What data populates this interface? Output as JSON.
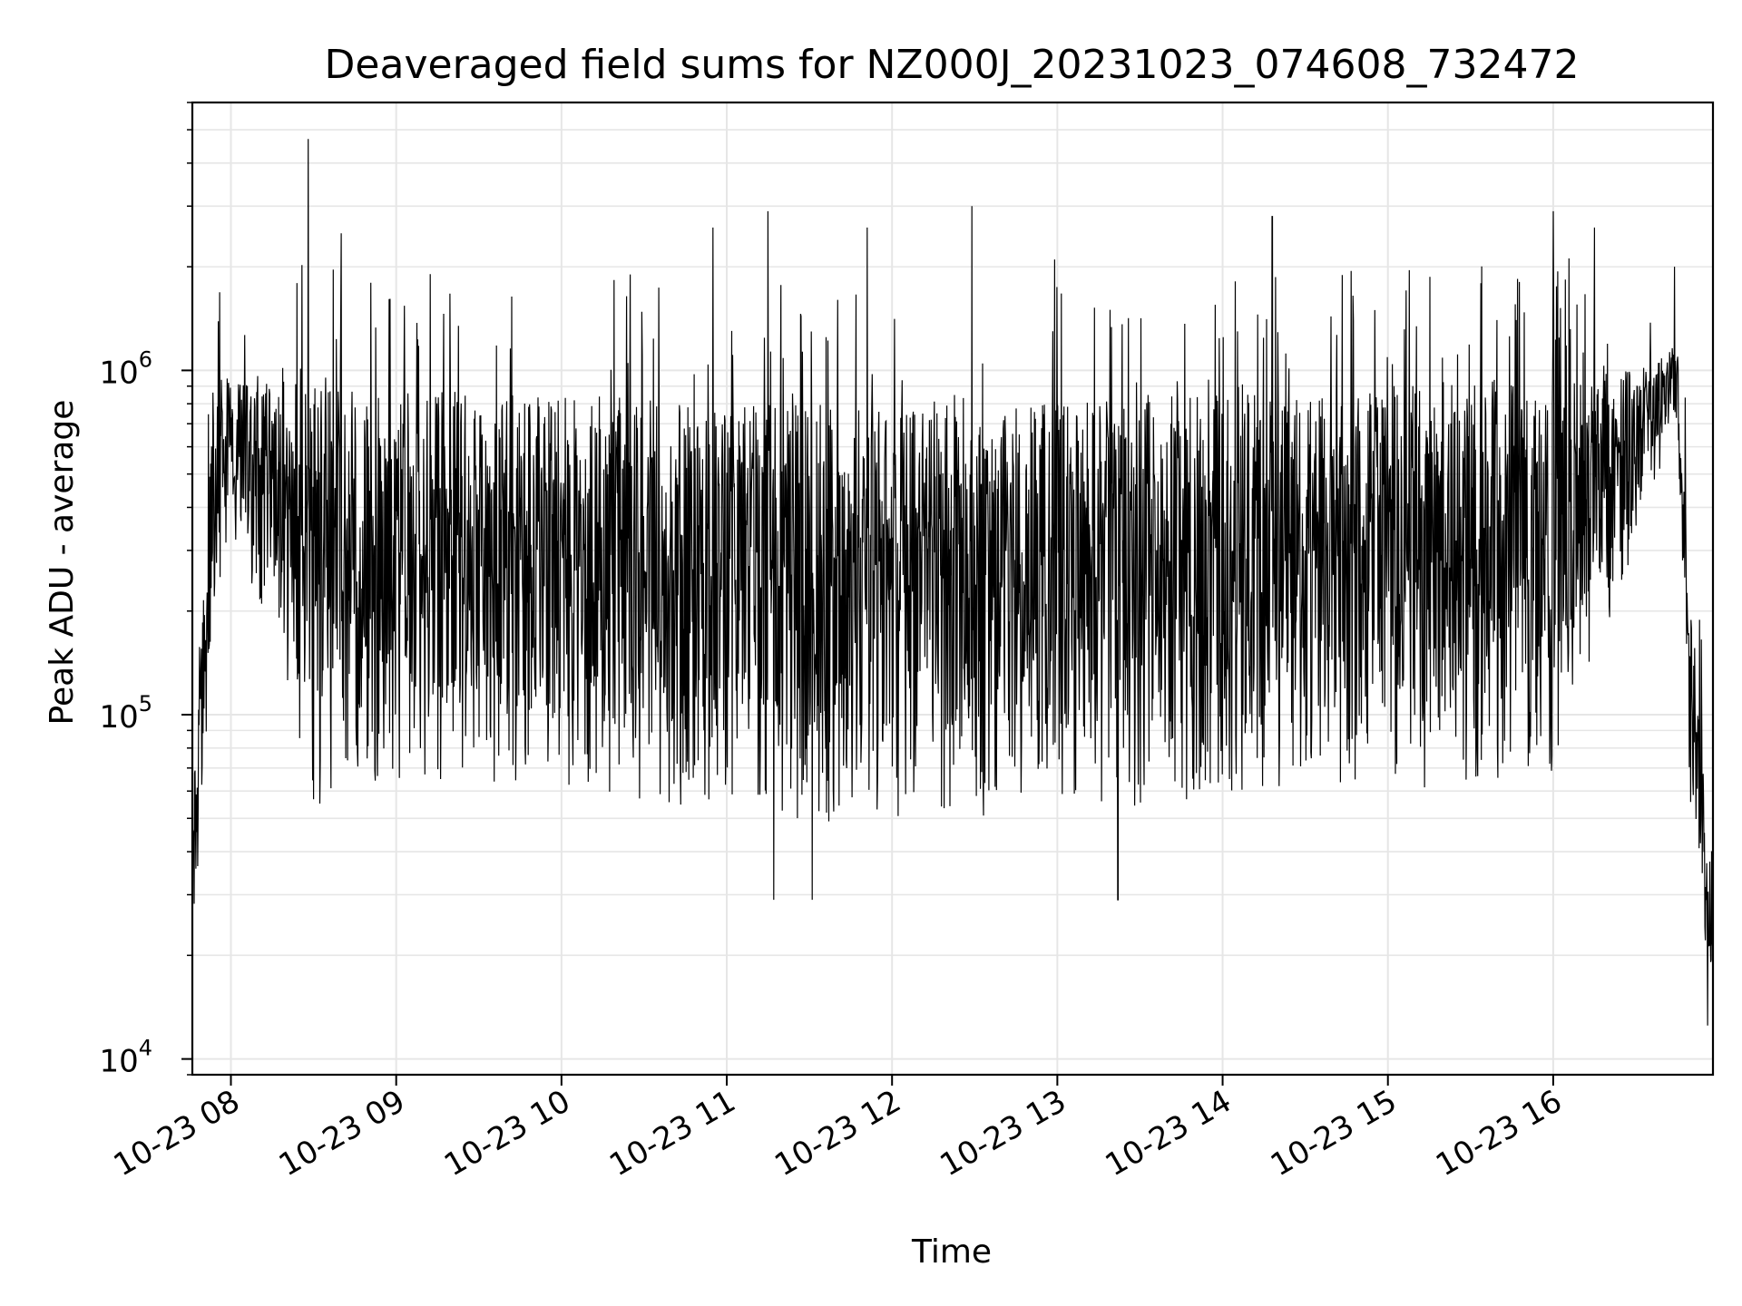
{
  "chart_data": {
    "type": "line",
    "title": "Deaveraged field sums for NZ000J_20231023_074608_732472",
    "xlabel": "Time",
    "ylabel": "Peak ADU - average",
    "yscale": "log",
    "xlim": [
      "2023-10-23 07:46",
      "2023-10-23 16:58"
    ],
    "ylim": [
      9000,
      6000000
    ],
    "grid": true,
    "x_ticks": [
      "10-23 08",
      "10-23 09",
      "10-23 10",
      "10-23 11",
      "10-23 12",
      "10-23 13",
      "10-23 14",
      "10-23 15",
      "10-23 16"
    ],
    "y_ticks": [
      {
        "base": "10",
        "exp": "4"
      },
      {
        "base": "10",
        "exp": "5"
      },
      {
        "base": "10",
        "exp": "6"
      }
    ],
    "line_color": "#000000",
    "grid_color": "#e6e6e6",
    "series_envelope": [
      {
        "time": "2023-10-23 07:46",
        "low": 20000,
        "high": 60000
      },
      {
        "time": "2023-10-23 07:54",
        "low": 200000,
        "high": 900000
      },
      {
        "time": "2023-10-23 08:00",
        "low": 350000,
        "high": 1000000
      },
      {
        "time": "2023-10-23 08:30",
        "low": 50000,
        "high": 900000
      },
      {
        "time": "2023-10-23 09:00",
        "low": 60000,
        "high": 900000
      },
      {
        "time": "2023-10-23 10:00",
        "low": 60000,
        "high": 850000
      },
      {
        "time": "2023-10-23 11:00",
        "low": 50000,
        "high": 800000
      },
      {
        "time": "2023-10-23 12:00",
        "low": 45000,
        "high": 800000
      },
      {
        "time": "2023-10-23 13:00",
        "low": 50000,
        "high": 800000
      },
      {
        "time": "2023-10-23 14:00",
        "low": 55000,
        "high": 850000
      },
      {
        "time": "2023-10-23 15:00",
        "low": 60000,
        "high": 900000
      },
      {
        "time": "2023-10-23 16:00",
        "low": 60000,
        "high": 950000
      },
      {
        "time": "2023-10-23 16:30",
        "low": 300000,
        "high": 1000000
      },
      {
        "time": "2023-10-23 16:45",
        "low": 700000,
        "high": 1200000
      },
      {
        "time": "2023-10-23 16:50",
        "low": 50000,
        "high": 200000
      },
      {
        "time": "2023-10-23 16:58",
        "low": 13000,
        "high": 30000
      }
    ],
    "spikes": [
      {
        "time": "2023-10-23 08:28",
        "value": 4700000
      },
      {
        "time": "2023-10-23 08:40",
        "value": 2500000
      },
      {
        "time": "2023-10-23 10:25",
        "value": 1900000
      },
      {
        "time": "2023-10-23 10:55",
        "value": 2600000
      },
      {
        "time": "2023-10-23 11:15",
        "value": 2900000
      },
      {
        "time": "2023-10-23 11:51",
        "value": 2600000
      },
      {
        "time": "2023-10-23 12:29",
        "value": 3000000
      },
      {
        "time": "2023-10-23 12:59",
        "value": 2100000
      },
      {
        "time": "2023-10-23 14:18",
        "value": 2800000
      },
      {
        "time": "2023-10-23 16:00",
        "value": 2900000
      },
      {
        "time": "2023-10-23 16:15",
        "value": 2600000
      },
      {
        "time": "2023-10-23 16:44",
        "value": 2000000
      }
    ],
    "dips": [
      {
        "time": "2023-10-23 11:17",
        "value": 29000
      },
      {
        "time": "2023-10-23 11:31",
        "value": 29000
      },
      {
        "time": "2023-10-23 13:22",
        "value": 29000
      },
      {
        "time": "2023-10-23 16:56",
        "value": 12500
      }
    ]
  }
}
